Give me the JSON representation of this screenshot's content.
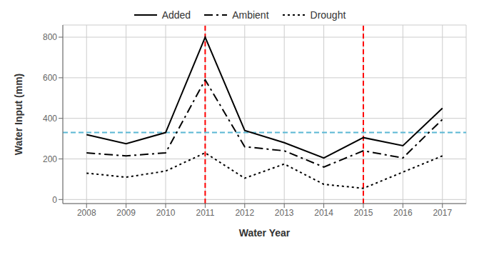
{
  "chart_data": {
    "type": "line",
    "xlabel": "Water Year",
    "ylabel": "Water Input (mm)",
    "x": [
      2008,
      2009,
      2010,
      2011,
      2012,
      2013,
      2014,
      2015,
      2016,
      2017
    ],
    "series": [
      {
        "name": "Added",
        "color": "#000000",
        "line_style": "solid",
        "values": [
          320,
          275,
          330,
          800,
          340,
          280,
          205,
          305,
          265,
          450
        ]
      },
      {
        "name": "Ambient",
        "color": "#000000",
        "line_style": "dashdot",
        "values": [
          230,
          215,
          230,
          590,
          260,
          240,
          160,
          240,
          205,
          395
        ]
      },
      {
        "name": "Drought",
        "color": "#000000",
        "line_style": "dotted",
        "values": [
          130,
          110,
          140,
          230,
          105,
          175,
          75,
          55,
          135,
          215
        ]
      }
    ],
    "hline": {
      "value": 330,
      "color": "#5BB8D4",
      "line_style": "dashed"
    },
    "vlines": {
      "values": [
        2011,
        2015
      ],
      "color": "#FF0000",
      "line_style": "dashed"
    },
    "xlim": [
      2007.4,
      2017.6
    ],
    "ylim": [
      -20,
      860
    ],
    "xticks": [
      2008,
      2009,
      2010,
      2011,
      2012,
      2013,
      2014,
      2015,
      2016,
      2017
    ],
    "yticks": [
      0,
      200,
      400,
      600,
      800
    ],
    "grid": true,
    "legend": "top"
  }
}
